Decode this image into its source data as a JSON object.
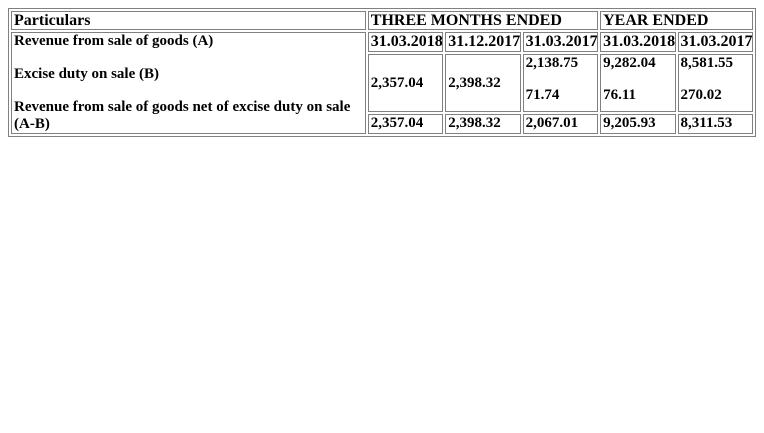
{
  "table": {
    "particulars_header": "Particulars",
    "group_headers": {
      "three_months": "THREE MONTHS ENDED",
      "year": "YEAR ENDED"
    },
    "dates": [
      "31.03.2018",
      "31.12.2017",
      "31.03.2017",
      "31.03.2018",
      "31.03.2017"
    ],
    "rows": {
      "revenue_label": "Revenue from sale of goods (A)",
      "excise_label": "Excise duty on sale (B)",
      "net_label": "Revenue from sale of goods net of excise duty on sale (A-B)",
      "merged_values": {
        "col1": "2,357.04",
        "col2": "2,398.32"
      },
      "revenue_values": {
        "col3": "2,138.75",
        "col4": "9,282.04",
        "col5": "8,581.55"
      },
      "excise_values": {
        "col3": "71.74",
        "col4": "76.11",
        "col5": "270.02"
      },
      "net_values": [
        "2,357.04",
        "2,398.32",
        "2,067.01",
        "9,205.93",
        "8,311.53"
      ]
    }
  }
}
